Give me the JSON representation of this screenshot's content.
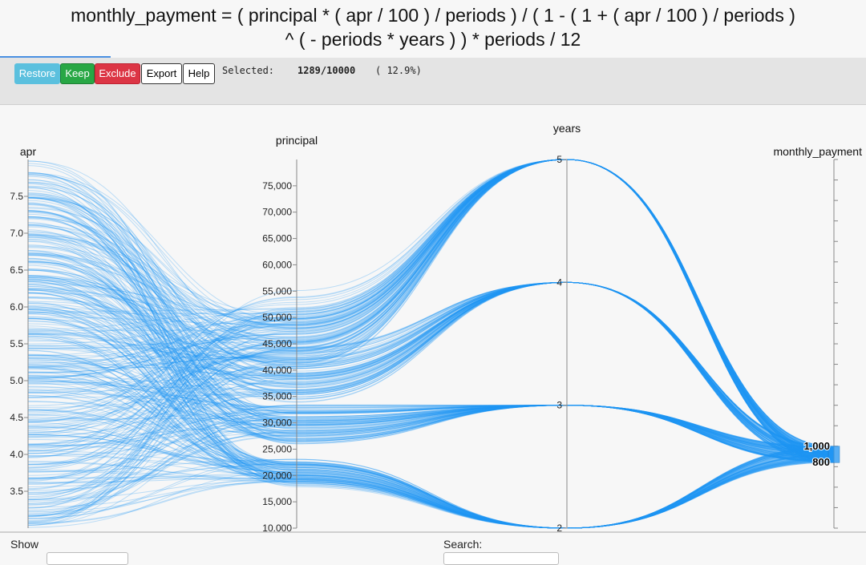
{
  "title_lines": [
    "monthly_payment = ( principal * ( apr / 100 ) / periods ) / ( 1 - ( 1 + ( apr / 100 ) / periods )",
    "^ ( - periods * years ) ) * periods / 12"
  ],
  "toolbar": {
    "restore": "Restore",
    "keep": "Keep",
    "exclude": "Exclude",
    "export": "Export",
    "help": "Help",
    "selected_label": "Selected:",
    "selected_count": "1289/10000",
    "selected_pct": "( 12.9%)"
  },
  "footer": {
    "show_label": "Show",
    "search_label": "Search:"
  },
  "colors": {
    "line": "#2196f3",
    "axis": "#888888",
    "brush": "#2196f3"
  },
  "chart_data": {
    "type": "parallel-coordinates",
    "axes": [
      {
        "name": "apr",
        "ticks": [
          "3.5",
          "4.0",
          "4.5",
          "5.0",
          "5.5",
          "6.0",
          "6.5",
          "7.0",
          "7.5"
        ],
        "range": [
          3,
          8
        ]
      },
      {
        "name": "principal",
        "ticks": [
          "10,000",
          "15,000",
          "20,000",
          "25,000",
          "30,000",
          "35,000",
          "40,000",
          "45,000",
          "50,000",
          "55,000",
          "60,000",
          "65,000",
          "70,000",
          "75,000"
        ],
        "range": [
          10000,
          80000
        ]
      },
      {
        "name": "years",
        "ticks": [
          "2",
          "3",
          "4",
          "5"
        ],
        "range": [
          2,
          5
        ]
      },
      {
        "name": "monthly_payment",
        "ticks": [
          "800",
          "1,000"
        ],
        "range": [
          0,
          4500
        ]
      }
    ],
    "brush": {
      "axis": "monthly_payment",
      "range": [
        800,
        1000
      ]
    },
    "selected": {
      "count": 1289,
      "total": 10000,
      "percent": 12.9
    },
    "series_note": "1289 polylines with monthly_payment between 800 and 1000"
  }
}
